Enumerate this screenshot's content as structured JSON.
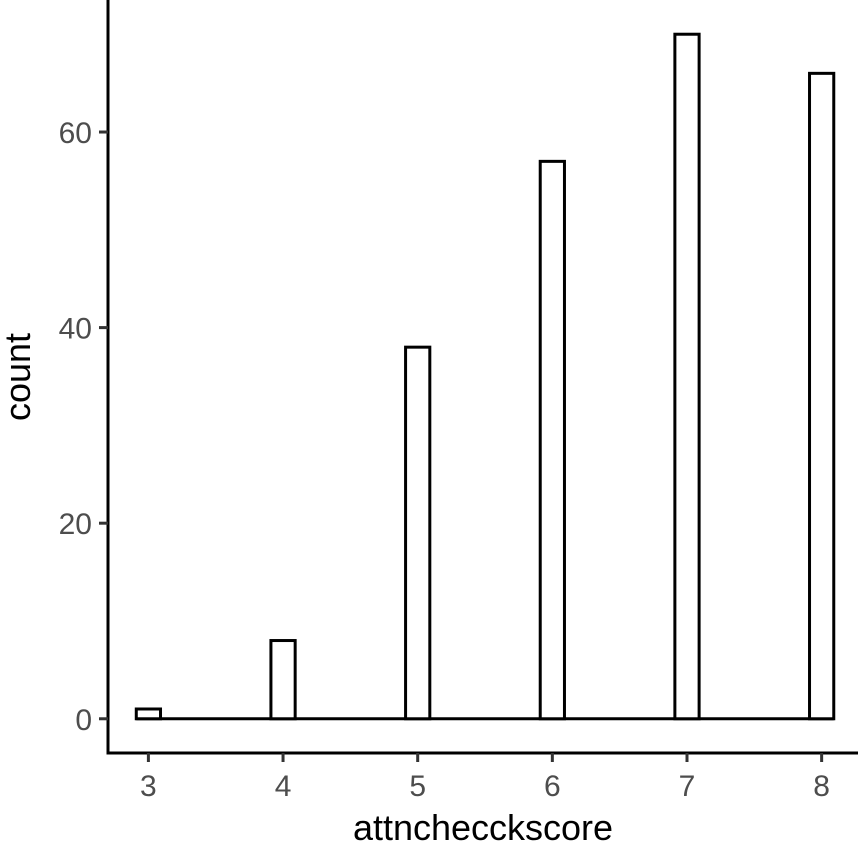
{
  "chart_data": {
    "type": "bar",
    "subtype": "histogram",
    "title": "",
    "xlabel": "attnchecckscore",
    "ylabel": "count",
    "x_ticks": [
      "3",
      "4",
      "5",
      "6",
      "7",
      "8"
    ],
    "y_ticks": [
      "0",
      "20",
      "40",
      "60"
    ],
    "xlim": [
      2.7,
      8.27
    ],
    "ylim": [
      -3.5,
      73.5
    ],
    "bins": [
      {
        "x": 3.0,
        "count": 1
      },
      {
        "x": 4.0,
        "count": 8
      },
      {
        "x": 5.0,
        "count": 38
      },
      {
        "x": 6.0,
        "count": 57
      },
      {
        "x": 7.0,
        "count": 70
      },
      {
        "x": 8.0,
        "count": 66
      }
    ],
    "bar_fill": "#ffffff",
    "bar_stroke": "#000000",
    "grid": false,
    "legend": "none"
  }
}
